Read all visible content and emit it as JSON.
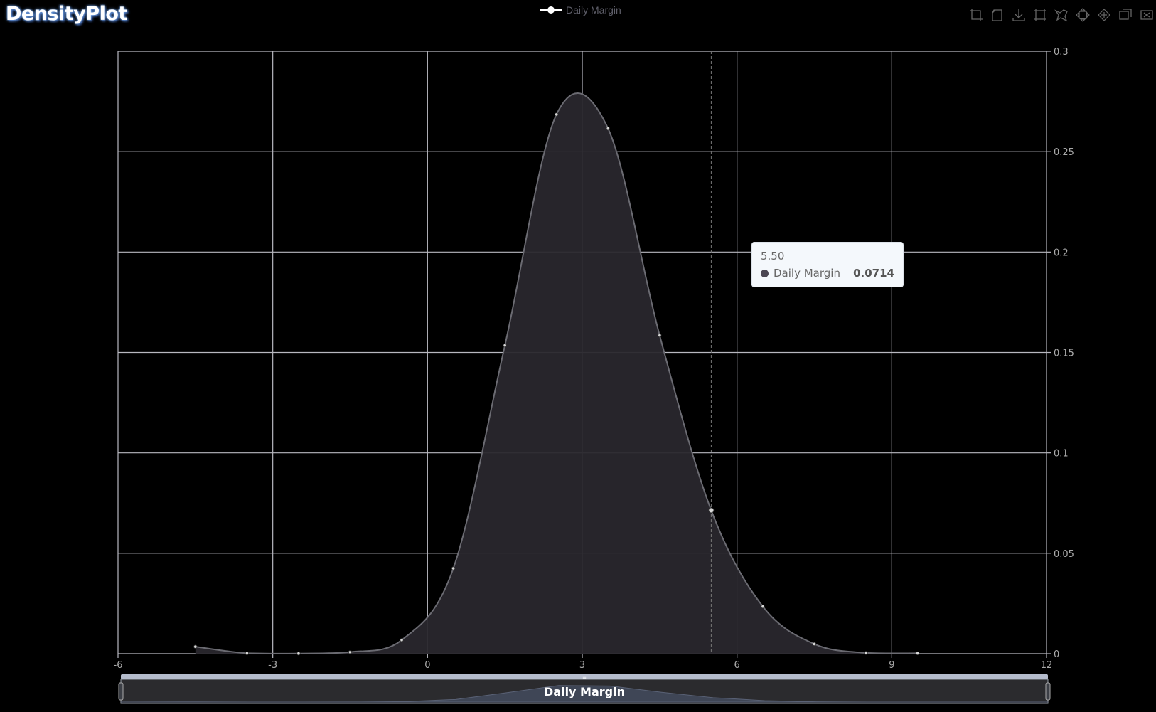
{
  "app": {
    "title": "DensityPlot"
  },
  "legend": {
    "label": "Daily Margin"
  },
  "toolbox": {
    "items": [
      {
        "icon": "zoom-area-icon"
      },
      {
        "icon": "zoom-reset-icon"
      },
      {
        "icon": "download-icon"
      },
      {
        "icon": "box-select-icon"
      },
      {
        "icon": "lasso-select-icon"
      },
      {
        "icon": "zoom-in-icon"
      },
      {
        "icon": "zoom-out-icon"
      },
      {
        "icon": "pan-icon"
      },
      {
        "icon": "reset-icon"
      }
    ]
  },
  "tooltip": {
    "x_label": "5.50",
    "series_name": "Daily Margin",
    "value": "0.0714"
  },
  "datazoom": {
    "label": "Daily Margin",
    "handle_glyph": "≡",
    "start_percent": 0,
    "end_percent": 100
  },
  "chart_data": {
    "type": "area",
    "x": [
      -4.5,
      -3.5,
      -2.5,
      -1.5,
      -0.5,
      0.5,
      1.5,
      2.5,
      3.5,
      4.5,
      5.5,
      6.5,
      7.5,
      8.5,
      9.5
    ],
    "series": [
      {
        "name": "Daily Margin",
        "values": [
          0.0035,
          0.0002,
          0.0001,
          0.0008,
          0.0068,
          0.0425,
          0.1535,
          0.2685,
          0.2615,
          0.1585,
          0.0714,
          0.0235,
          0.0048,
          0.0004,
          0.0002
        ]
      }
    ],
    "xlim": [
      -6,
      12
    ],
    "ylim": [
      0,
      0.3
    ],
    "x_ticks": [
      -6,
      -3,
      0,
      3,
      6,
      9,
      12
    ],
    "x_tick_labels": [
      "-6",
      "-3",
      "0",
      "3",
      "6",
      "9",
      "12"
    ],
    "y_ticks": [
      0,
      0.05,
      0.1,
      0.15,
      0.2,
      0.25,
      0.3
    ],
    "y_tick_labels": [
      "0",
      "0.05",
      "0.1",
      "0.15",
      "0.2",
      "0.25",
      "0.3"
    ],
    "y_axis_position": "right",
    "grid": true,
    "legend_position": "top-center",
    "hover_x": 5.5,
    "colors": {
      "line": "#6b6b72",
      "fill": "#29272d",
      "grid": "#b8b8c0",
      "marker": "#d8d8d8"
    }
  }
}
